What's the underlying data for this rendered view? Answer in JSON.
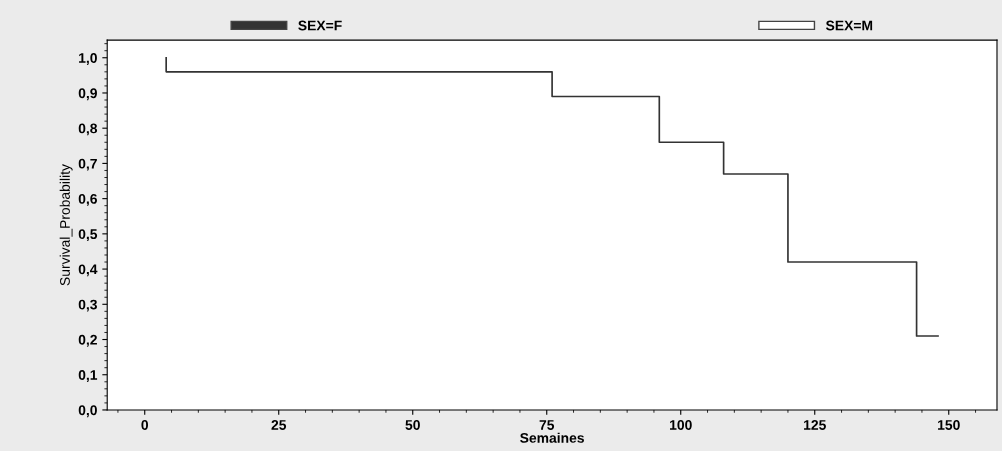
{
  "chart_data": {
    "type": "step",
    "xlabel": "Semaines",
    "ylabel": "Survival_Probability",
    "xlim": [
      -7,
      159
    ],
    "xticks": [
      0,
      25,
      50,
      75,
      100,
      125,
      150
    ],
    "ylim": [
      0,
      1.05
    ],
    "yticks": [
      {
        "value": 0,
        "label": "0,0"
      },
      {
        "value": 0.1,
        "label": "0,1"
      },
      {
        "value": 0.2,
        "label": "0,2"
      },
      {
        "value": 0.3,
        "label": "0,3"
      },
      {
        "value": 0.4,
        "label": "0,4"
      },
      {
        "value": 0.5,
        "label": "0,5"
      },
      {
        "value": 0.6,
        "label": "0,6"
      },
      {
        "value": 0.7,
        "label": "0,7"
      },
      {
        "value": 0.8,
        "label": "0,8"
      },
      {
        "value": 0.9,
        "label": "0,9"
      },
      {
        "value": 1.0,
        "label": "1,0"
      }
    ],
    "grid": false,
    "legend": "top",
    "series": [
      {
        "name": "SEX=F",
        "color": "#333333",
        "x": [
          4,
          4,
          76,
          96,
          108,
          120,
          144,
          148
        ],
        "values": [
          1.0,
          0.96,
          0.89,
          0.76,
          0.67,
          0.42,
          0.21,
          0.21
        ]
      },
      {
        "name": "SEX=M",
        "color": "#ffffff"
      }
    ]
  }
}
